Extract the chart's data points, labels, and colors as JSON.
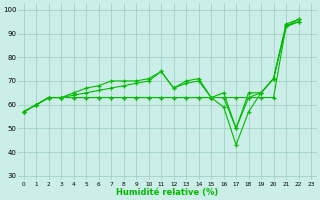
{
  "xlabel": "Humidité relative (%)",
  "bg_color": "#cceee8",
  "line_color": "#00bb00",
  "grid_color": "#99ccbb",
  "xlim": [
    -0.5,
    23.5
  ],
  "ylim": [
    28,
    103
  ],
  "xticks": [
    0,
    1,
    2,
    3,
    4,
    5,
    6,
    7,
    8,
    9,
    10,
    11,
    12,
    13,
    14,
    15,
    16,
    17,
    18,
    19,
    20,
    21,
    22,
    23
  ],
  "yticks": [
    30,
    40,
    50,
    60,
    70,
    80,
    90,
    100
  ],
  "x_vals": [
    0,
    1,
    2,
    3,
    4,
    5,
    6,
    7,
    8,
    9,
    10,
    11,
    12,
    13,
    14,
    15,
    16,
    17,
    18,
    19,
    20,
    21,
    22
  ],
  "series": [
    [
      57,
      60,
      63,
      63,
      63,
      63,
      63,
      63,
      63,
      63,
      63,
      63,
      63,
      63,
      63,
      63,
      59,
      43,
      57,
      65,
      71,
      94,
      96
    ],
    [
      57,
      60,
      63,
      63,
      64,
      65,
      66,
      67,
      68,
      69,
      70,
      74,
      67,
      69,
      70,
      63,
      63,
      50,
      63,
      65,
      71,
      93,
      95
    ],
    [
      57,
      60,
      63,
      63,
      65,
      67,
      68,
      70,
      70,
      70,
      71,
      74,
      67,
      70,
      71,
      63,
      65,
      50,
      65,
      65,
      71,
      93,
      95
    ],
    [
      57,
      60,
      63,
      63,
      63,
      63,
      63,
      63,
      63,
      63,
      63,
      63,
      63,
      63,
      63,
      63,
      63,
      63,
      63,
      63,
      63,
      93,
      96
    ]
  ]
}
